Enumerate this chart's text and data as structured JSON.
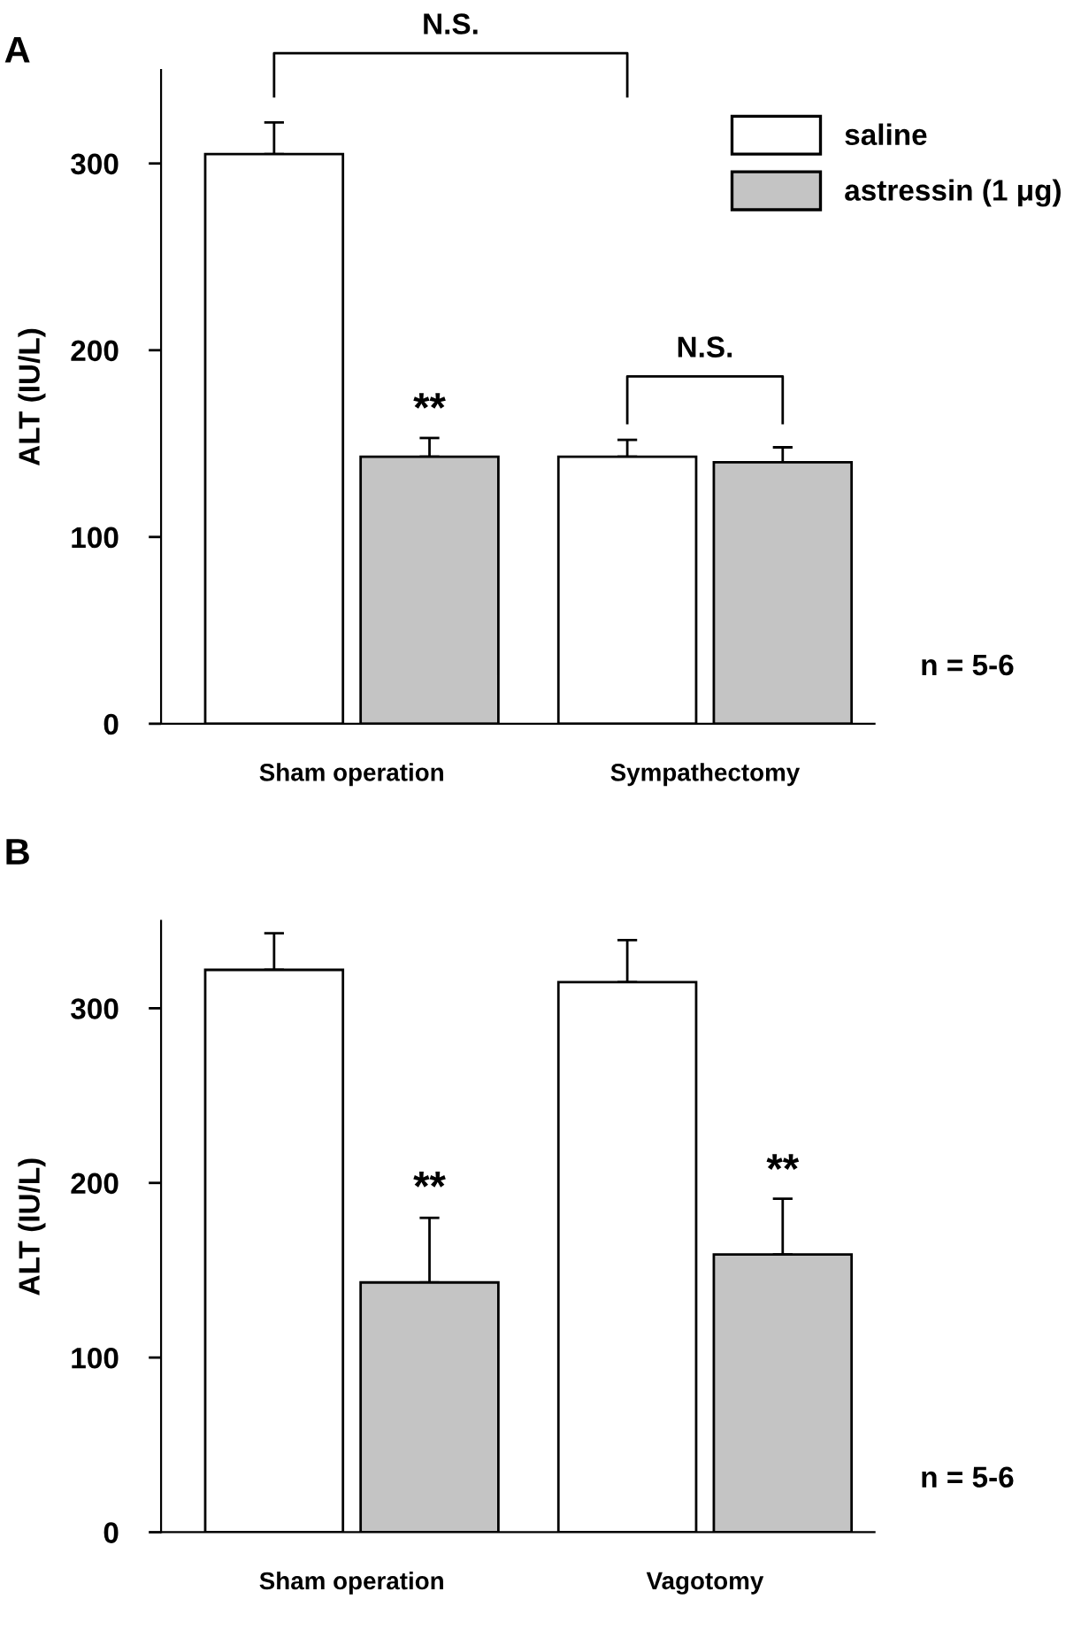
{
  "chart_data": [
    {
      "type": "bar",
      "title": "A",
      "ylabel": "ALT (IU/L)",
      "categories": [
        "Sham operation",
        "Sympathectomy"
      ],
      "series": [
        {
          "name": "saline",
          "color": "#ffffff",
          "values": [
            305,
            143
          ],
          "errors": [
            17,
            9
          ]
        },
        {
          "name": "astressin (1 μg)",
          "color": "#c4c4c4",
          "values": [
            143,
            140
          ],
          "errors": [
            10,
            8
          ]
        }
      ],
      "ylim": [
        0,
        350
      ],
      "yticks": [
        0,
        100,
        200,
        300
      ],
      "grid": false,
      "legend": "top right",
      "annotations": [
        "N.S.",
        "**",
        "N.S.",
        "n = 5-6"
      ]
    },
    {
      "type": "bar",
      "title": "B",
      "ylabel": "ALT (IU/L)",
      "categories": [
        "Sham operation",
        "Vagotomy"
      ],
      "series": [
        {
          "color": "#ffffff",
          "values": [
            322,
            315
          ],
          "errors": [
            21,
            24
          ]
        },
        {
          "color": "#c4c4c4",
          "values": [
            143,
            159
          ],
          "errors": [
            37,
            32
          ]
        }
      ],
      "ylim": [
        0,
        350
      ],
      "yticks": [
        0,
        100,
        200,
        300
      ],
      "grid": false,
      "legend": false,
      "annotations": [
        "**",
        "**",
        "n = 5-6"
      ]
    }
  ]
}
